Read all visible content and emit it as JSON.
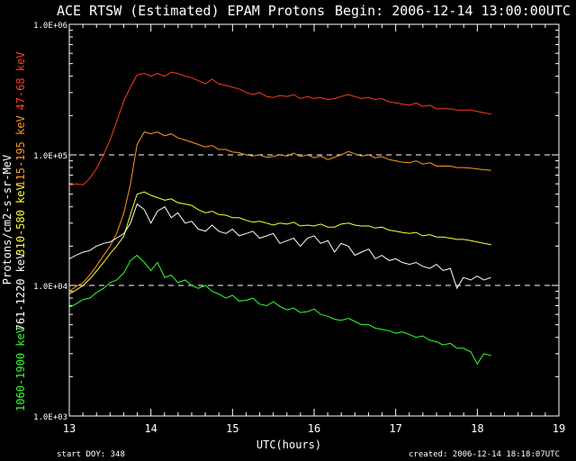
{
  "chart_data": {
    "type": "line",
    "title": "ACE RTSW (Estimated) EPAM Protons",
    "begin_label": "Begin: 2006-12-14 13:00:00UTC",
    "xlabel": "UTC(hours)",
    "ylabel": "Protons/cm2-s-sr-MeV",
    "x_ticks": [
      "13",
      "14",
      "15",
      "16",
      "17",
      "18",
      "19"
    ],
    "xlim": [
      13,
      19
    ],
    "y_scale": "log",
    "ylim": [
      1000,
      1000000
    ],
    "y_ticks": [
      "1.0E+03",
      "1.0E+04",
      "1.0E+05",
      "1.0E+06"
    ],
    "grid": {
      "dashed_y": [
        10000,
        100000
      ]
    },
    "footer_left": "start DOY:  348",
    "footer_right": "created: 2006-12-14 18:18:07UTC",
    "x": [
      13.0,
      13.08,
      13.17,
      13.25,
      13.33,
      13.42,
      13.5,
      13.58,
      13.67,
      13.75,
      13.83,
      13.92,
      14.0,
      14.08,
      14.17,
      14.25,
      14.33,
      14.42,
      14.5,
      14.58,
      14.67,
      14.75,
      14.83,
      14.92,
      15.0,
      15.08,
      15.17,
      15.25,
      15.33,
      15.42,
      15.5,
      15.58,
      15.67,
      15.75,
      15.83,
      15.92,
      16.0,
      16.08,
      16.17,
      16.25,
      16.33,
      16.42,
      16.5,
      16.58,
      16.67,
      16.75,
      16.83,
      16.92,
      17.0,
      17.08,
      17.17,
      17.25,
      17.33,
      17.42,
      17.5,
      17.58,
      17.67,
      17.75,
      17.83,
      17.92,
      18.0,
      18.08,
      18.17
    ],
    "series": [
      {
        "name": "47-68 keV",
        "color": "#ff3b1f",
        "values": [
          58000,
          60000,
          59000,
          66000,
          78000,
          100000,
          130000,
          180000,
          260000,
          330000,
          410000,
          420000,
          400000,
          420000,
          400000,
          430000,
          420000,
          400000,
          390000,
          370000,
          350000,
          380000,
          350000,
          340000,
          330000,
          320000,
          300000,
          290000,
          300000,
          280000,
          275000,
          285000,
          280000,
          290000,
          270000,
          280000,
          270000,
          275000,
          265000,
          270000,
          280000,
          290000,
          280000,
          270000,
          275000,
          265000,
          270000,
          255000,
          250000,
          245000,
          240000,
          250000,
          235000,
          240000,
          225000,
          225000,
          225000,
          220000,
          220000,
          220000,
          215000,
          210000,
          205000
        ]
      },
      {
        "name": "115-195 keV",
        "color": "#ff9a1c",
        "values": [
          9000,
          9800,
          10500,
          12000,
          14000,
          17000,
          20000,
          25000,
          36000,
          60000,
          120000,
          150000,
          145000,
          150000,
          140000,
          145000,
          135000,
          130000,
          125000,
          120000,
          115000,
          118000,
          110000,
          110000,
          105000,
          104000,
          100000,
          98000,
          100000,
          96000,
          97000,
          100000,
          98000,
          103000,
          97000,
          100000,
          95000,
          98000,
          92000,
          96000,
          100000,
          106000,
          102000,
          98000,
          100000,
          95000,
          97000,
          92000,
          90000,
          88000,
          87000,
          90000,
          85000,
          87000,
          82000,
          82000,
          82000,
          80000,
          80000,
          79000,
          78000,
          77000,
          76000
        ]
      },
      {
        "name": "310-580 keV",
        "color": "#ffff33",
        "values": [
          8600,
          9200,
          10000,
          11200,
          12800,
          15000,
          17500,
          20000,
          24000,
          35000,
          50000,
          52000,
          49000,
          47000,
          45000,
          46000,
          43000,
          42000,
          41000,
          38000,
          36000,
          37000,
          35000,
          34500,
          33000,
          33000,
          31500,
          30500,
          31000,
          30000,
          29000,
          30000,
          29500,
          30500,
          28500,
          29000,
          28500,
          29500,
          28000,
          28000,
          29500,
          30000,
          29000,
          28500,
          28500,
          27500,
          28000,
          26500,
          26000,
          25500,
          25000,
          25500,
          24000,
          24500,
          23500,
          23500,
          23000,
          22500,
          22500,
          22000,
          21500,
          21000,
          20500
        ]
      },
      {
        "name": "761-1220 keV",
        "color": "#ffffff",
        "values": [
          16000,
          17000,
          18000,
          18500,
          20000,
          21000,
          21500,
          23000,
          25000,
          30000,
          42000,
          38000,
          30000,
          37000,
          40000,
          33000,
          36000,
          30000,
          31000,
          27000,
          26000,
          29000,
          26000,
          25000,
          27000,
          24000,
          25000,
          26000,
          23000,
          24000,
          25000,
          21000,
          22000,
          23000,
          20000,
          23000,
          24000,
          21000,
          22000,
          18000,
          21000,
          20000,
          17000,
          18000,
          19000,
          16000,
          17000,
          15500,
          16000,
          15000,
          14500,
          15000,
          14000,
          13500,
          14500,
          13000,
          13500,
          9500,
          11500,
          11000,
          11800,
          11000,
          11500
        ]
      },
      {
        "name": "1060-1900 keV",
        "color": "#33ff33",
        "values": [
          6800,
          7200,
          7800,
          8000,
          8800,
          9500,
          10500,
          11000,
          12500,
          15500,
          17000,
          15000,
          13000,
          15000,
          11500,
          12000,
          10500,
          11000,
          10000,
          9500,
          10000,
          9000,
          8600,
          8000,
          8400,
          7600,
          7700,
          8000,
          7200,
          7000,
          7500,
          6900,
          6500,
          6700,
          6200,
          6300,
          6600,
          6000,
          5800,
          5500,
          5400,
          5600,
          5300,
          5000,
          5000,
          4700,
          4600,
          4500,
          4300,
          4400,
          4200,
          4000,
          4100,
          3800,
          3700,
          3500,
          3600,
          3300,
          3300,
          3100,
          2500,
          3000,
          2900
        ]
      }
    ]
  }
}
